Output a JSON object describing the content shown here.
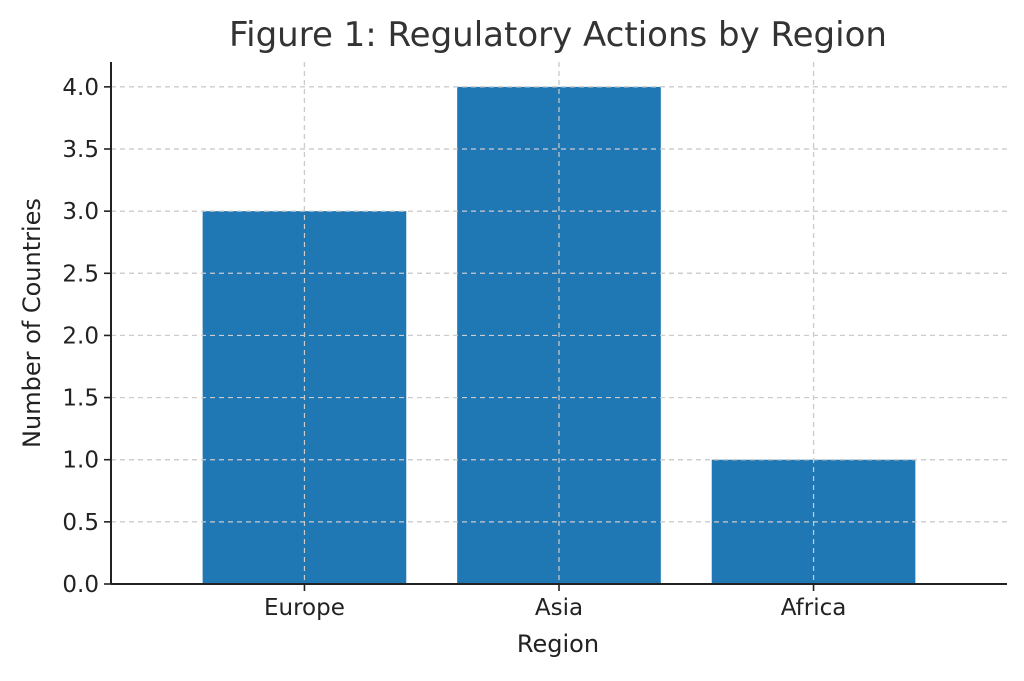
{
  "chart_data": {
    "type": "bar",
    "title": "Figure 1: Regulatory Actions by Region",
    "xlabel": "Region",
    "ylabel": "Number of Countries",
    "categories": [
      "Europe",
      "Asia",
      "Africa"
    ],
    "values": [
      3,
      4,
      1
    ],
    "ylim": [
      0,
      4.2
    ],
    "yticks": [
      "0.0",
      "0.5",
      "1.0",
      "1.5",
      "2.0",
      "2.5",
      "3.0",
      "3.5",
      "4.0"
    ],
    "grid": true,
    "bar_color": "#1f77b4"
  }
}
